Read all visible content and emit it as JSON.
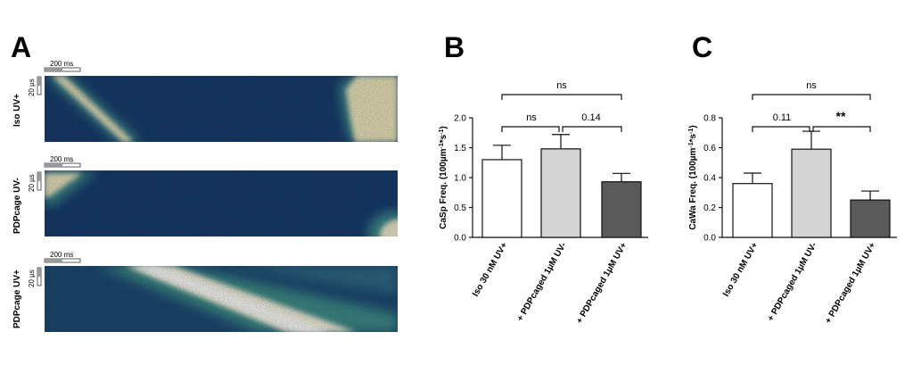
{
  "panel_a": {
    "letter": "A",
    "scale_time": "200 ms",
    "scale_space": "20 µs",
    "rows": [
      {
        "label": "Iso UV+"
      },
      {
        "label": "PDPcage UV-"
      },
      {
        "label": "PDPcage UV+"
      }
    ],
    "colors": {
      "dark": "#153a6e",
      "mid": "#2f6f8a",
      "bright": "#f3f0d8"
    }
  },
  "chart_data": [
    {
      "type": "bar",
      "letter": "B",
      "categories": [
        "Iso 30 nM UV+",
        "+ PDPcaged 1µM UV-",
        "+ PDPcaged 1µM UV+"
      ],
      "values": [
        1.3,
        1.48,
        0.93
      ],
      "errors": [
        0.24,
        0.24,
        0.14
      ],
      "bar_colors": [
        "#ffffff",
        "#d4d4d4",
        "#5a5a5a"
      ],
      "ylabel_main": "CaSp Freq. (100µm",
      "ylabel_sup1": "-1",
      "ylabel_mid": "*s",
      "ylabel_sup2": "-1",
      "ylabel_end": ")",
      "ylim": [
        0,
        2.0
      ],
      "yticks": [
        "0.0",
        "0.5",
        "1.0",
        "1.5",
        "2.0"
      ],
      "annotations": [
        {
          "from": 0,
          "to": 1,
          "text": "ns",
          "level": 0
        },
        {
          "from": 1,
          "to": 2,
          "text": "0.14",
          "level": 0
        },
        {
          "from": 0,
          "to": 2,
          "text": "ns",
          "level": 1
        }
      ]
    },
    {
      "type": "bar",
      "letter": "C",
      "categories": [
        "Iso 30 nM UV+",
        "+ PDPcaged 1µM UV-",
        "+ PDPcaged 1µM UV+"
      ],
      "values": [
        0.36,
        0.59,
        0.25
      ],
      "errors": [
        0.07,
        0.12,
        0.06
      ],
      "bar_colors": [
        "#ffffff",
        "#d4d4d4",
        "#5a5a5a"
      ],
      "ylabel_main": "CaWa Freq. (100µm",
      "ylabel_sup1": "-1",
      "ylabel_mid": "*s",
      "ylabel_sup2": "-1",
      "ylabel_end": ")",
      "ylim": [
        0,
        0.8
      ],
      "yticks": [
        "0.0",
        "0.2",
        "0.4",
        "0.6",
        "0.8"
      ],
      "annotations": [
        {
          "from": 0,
          "to": 1,
          "text": "0.11",
          "level": 0
        },
        {
          "from": 1,
          "to": 2,
          "text": "**",
          "level": 0,
          "bold": true
        },
        {
          "from": 0,
          "to": 2,
          "text": "ns",
          "level": 1
        }
      ]
    }
  ]
}
